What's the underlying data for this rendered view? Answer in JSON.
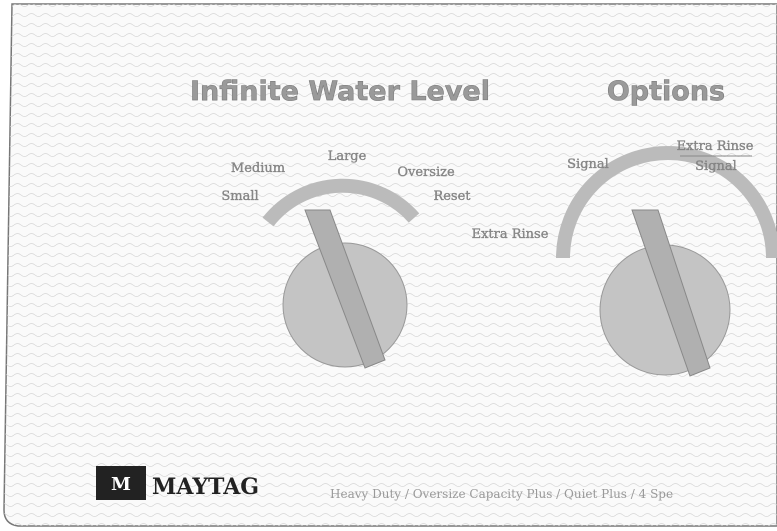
{
  "panel": {
    "water_level": {
      "title": "Infinite Water Level",
      "settings": [
        "Small",
        "Medium",
        "Large",
        "Oversize",
        "Reset"
      ]
    },
    "options": {
      "title": "Options",
      "settings": [
        "Extra Rinse",
        "Signal",
        "Extra Rinse",
        "Signal"
      ]
    },
    "brand": "MAYTAG",
    "tagline": "Heavy Duty / Oversize Capacity Plus / Quiet Plus / 4 Spe"
  }
}
